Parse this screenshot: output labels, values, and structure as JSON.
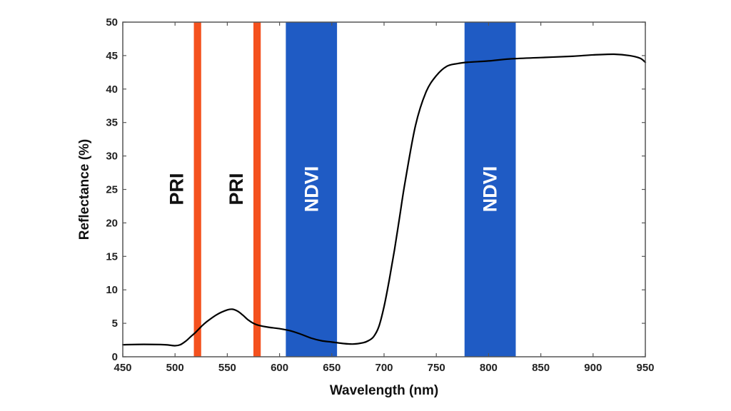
{
  "chart_data": {
    "type": "line",
    "title": "",
    "xlabel": "Wavelength (nm)",
    "ylabel": "Reflectance (%)",
    "xlim": [
      450,
      950
    ],
    "ylim": [
      0,
      50
    ],
    "grid": false,
    "x_ticks": [
      450,
      500,
      550,
      600,
      650,
      700,
      750,
      800,
      850,
      900,
      950
    ],
    "y_ticks": [
      0,
      5,
      10,
      15,
      20,
      25,
      30,
      35,
      40,
      45,
      50
    ],
    "bands": [
      {
        "name": "PRI",
        "start": 518,
        "end": 525,
        "color": "#f4511e",
        "label": "PRI"
      },
      {
        "name": "PRI",
        "start": 575,
        "end": 582,
        "color": "#f4511e",
        "label": "PRI"
      },
      {
        "name": "NDVI",
        "start": 606,
        "end": 655,
        "color": "#1f5bc4",
        "label": "NDVI"
      },
      {
        "name": "NDVI",
        "start": 777,
        "end": 826,
        "color": "#1f5bc4",
        "label": "NDVI"
      }
    ],
    "series": [
      {
        "name": "Reflectance",
        "color": "#000000",
        "x": [
          450,
          470,
          490,
          500,
          505,
          510,
          515,
          520,
          525,
          530,
          540,
          550,
          555,
          560,
          565,
          570,
          575,
          580,
          590,
          600,
          610,
          620,
          630,
          640,
          650,
          660,
          670,
          680,
          685,
          690,
          695,
          700,
          705,
          710,
          715,
          720,
          730,
          740,
          750,
          760,
          770,
          780,
          800,
          820,
          850,
          880,
          900,
          920,
          935,
          945,
          950
        ],
        "y": [
          1.8,
          1.85,
          1.8,
          1.65,
          1.8,
          2.3,
          3.0,
          3.7,
          4.5,
          5.2,
          6.3,
          7.0,
          7.1,
          6.8,
          6.2,
          5.5,
          5.0,
          4.7,
          4.4,
          4.2,
          3.9,
          3.4,
          2.8,
          2.4,
          2.2,
          2.0,
          1.9,
          2.1,
          2.4,
          3.0,
          4.5,
          7.5,
          11.5,
          16.0,
          21.0,
          26.0,
          34.5,
          39.5,
          42.0,
          43.4,
          43.8,
          44.0,
          44.2,
          44.5,
          44.7,
          44.9,
          45.1,
          45.2,
          45.0,
          44.6,
          44.0
        ]
      }
    ]
  }
}
